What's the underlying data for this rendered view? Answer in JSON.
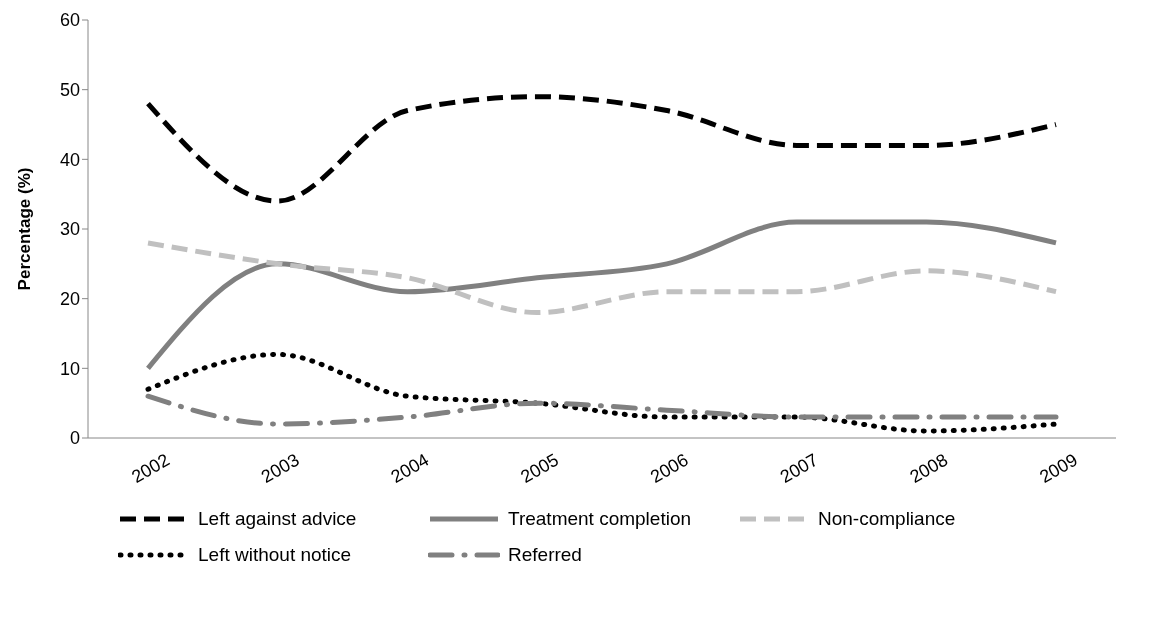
{
  "chart_data": {
    "type": "line",
    "ylabel": "Percentage (%)",
    "categories": [
      "2002",
      "2003",
      "2004",
      "2005",
      "2006",
      "2007",
      "2008",
      "2009"
    ],
    "series": [
      {
        "name": "Left against advice",
        "color": "#000000",
        "line_style": "dashed",
        "values": [
          48,
          34,
          47,
          49,
          47,
          42,
          42,
          45
        ]
      },
      {
        "name": "Treatment completion",
        "color": "#808080",
        "line_style": "solid",
        "values": [
          10,
          25,
          21,
          23,
          25,
          31,
          31,
          28
        ]
      },
      {
        "name": "Non-compliance",
        "color": "#c0c0c0",
        "line_style": "dashed",
        "values": [
          28,
          25,
          23,
          18,
          21,
          21,
          24,
          21
        ]
      },
      {
        "name": "Left without notice",
        "color": "#000000",
        "line_style": "dotted",
        "values": [
          7,
          12,
          6,
          5,
          3,
          3,
          1,
          2
        ]
      },
      {
        "name": "Referred",
        "color": "#808080",
        "line_style": "dashdot",
        "values": [
          6,
          2,
          3,
          5,
          4,
          3,
          3,
          3
        ]
      }
    ],
    "ylim": [
      0,
      60
    ],
    "yticks": [
      0,
      10,
      20,
      30,
      40,
      50,
      60
    ],
    "grid": false,
    "legend": "bottom",
    "marker": "none"
  }
}
